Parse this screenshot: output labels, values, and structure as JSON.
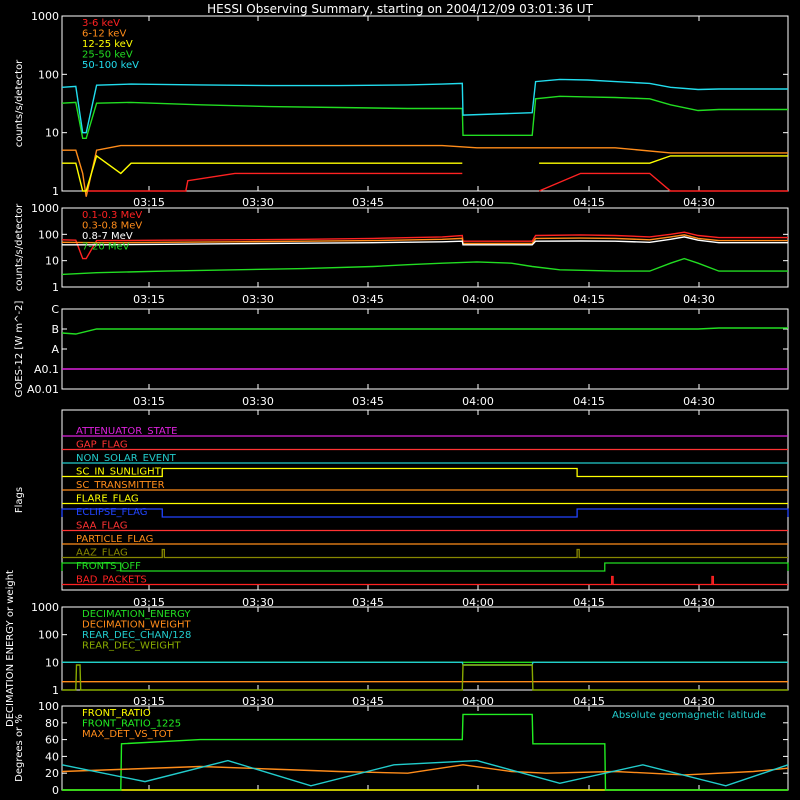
{
  "title": "HESSI Observing Summary, starting on 2004/12/09 03:01:36 UT",
  "time_ticks": [
    "03:15",
    "03:30",
    "03:45",
    "04:00",
    "04:15",
    "04:30"
  ],
  "chart_data": [
    {
      "type": "line",
      "ylabel": "counts/s/detector",
      "yscale": "log",
      "ylim": [
        1,
        1000
      ],
      "ytick_labels": [
        "1",
        "10",
        "100",
        "1000"
      ],
      "x_unit": "minutes after 03:01:36 UT",
      "xlim": [
        0,
        105
      ],
      "legend": "top-left",
      "series": [
        {
          "name": "3-6 keV",
          "color": "#ff2222",
          "x": [
            3.5,
            8.5,
            17.9,
            18.2,
            25,
            40,
            55,
            57.9,
            58,
            68,
            69,
            75,
            80,
            85,
            88,
            105
          ],
          "y": [
            1,
            1,
            1,
            1.5,
            2,
            2,
            2,
            2,
            null,
            null,
            1,
            2,
            2,
            2,
            1,
            1
          ]
        },
        {
          "name": "6-12 keV",
          "color": "#ff8c1a",
          "x": [
            0,
            2,
            3,
            3.5,
            5,
            8.5,
            10,
            20,
            30,
            40,
            50,
            55,
            60,
            70,
            80,
            88,
            95,
            100,
            105
          ],
          "y": [
            5,
            5,
            2,
            0.8,
            5,
            6,
            6,
            6,
            6,
            6,
            6,
            6,
            5.5,
            5.5,
            5.5,
            4.5,
            4.5,
            4.5,
            4.5
          ]
        },
        {
          "name": "12-25 keV",
          "color": "#ffff00",
          "x": [
            0,
            2,
            3,
            3.5,
            5,
            8.5,
            10,
            20,
            30,
            40,
            50,
            57.9,
            58,
            68,
            69,
            75,
            80,
            85,
            88,
            95,
            105
          ],
          "y": [
            3,
            3,
            1,
            1,
            4,
            2,
            3,
            3,
            3,
            3,
            3,
            3,
            null,
            null,
            3,
            3,
            3,
            3,
            4,
            4,
            4
          ]
        },
        {
          "name": "25-50 keV",
          "color": "#22dd22",
          "x": [
            0,
            2,
            3,
            3.5,
            5,
            10,
            20,
            30,
            40,
            50,
            55,
            57.9,
            58,
            68,
            68.5,
            72,
            76,
            80,
            85,
            88,
            92,
            95,
            100,
            105
          ],
          "y": [
            32,
            33,
            8,
            8,
            32,
            33,
            30,
            28,
            27,
            26,
            26,
            26,
            9,
            9,
            38,
            42,
            41,
            40,
            38,
            30,
            24,
            25,
            25,
            25
          ]
        },
        {
          "name": "50-100 keV",
          "color": "#22ddee",
          "x": [
            0,
            2,
            3,
            3.5,
            5,
            10,
            20,
            30,
            40,
            50,
            55,
            57.9,
            58,
            68,
            68.5,
            72,
            76,
            80,
            85,
            88,
            92,
            95,
            100,
            105
          ],
          "y": [
            60,
            62,
            10,
            10,
            65,
            68,
            66,
            64,
            64,
            66,
            68,
            70,
            20,
            22,
            75,
            82,
            80,
            75,
            70,
            60,
            55,
            56,
            56,
            56
          ]
        }
      ]
    },
    {
      "type": "line",
      "ylabel": "counts/s/detector",
      "yscale": "log",
      "ylim": [
        1,
        1000
      ],
      "ytick_labels": [
        "1",
        "10",
        "100",
        "1000"
      ],
      "x_unit": "minutes after 03:01:36 UT",
      "xlim": [
        0,
        105
      ],
      "legend": "top-left",
      "series": [
        {
          "name": "0.1-0.3 MeV",
          "color": "#ff2222",
          "x": [
            0,
            2,
            3,
            3.5,
            5,
            15,
            25,
            35,
            45,
            55,
            57.9,
            58,
            68,
            68.5,
            75,
            80,
            85,
            88,
            90,
            92,
            95,
            100,
            105
          ],
          "y": [
            62,
            60,
            12,
            12,
            58,
            60,
            62,
            65,
            70,
            80,
            90,
            55,
            55,
            90,
            95,
            90,
            80,
            100,
            120,
            90,
            75,
            75,
            75
          ]
        },
        {
          "name": "0.3-0.8 MeV",
          "color": "#ff8c1a",
          "x": [
            0,
            5,
            15,
            25,
            35,
            45,
            55,
            57.9,
            58,
            68,
            68.5,
            75,
            80,
            85,
            88,
            90,
            92,
            95,
            105
          ],
          "y": [
            50,
            48,
            50,
            52,
            55,
            58,
            65,
            70,
            45,
            45,
            70,
            72,
            70,
            62,
            80,
            95,
            70,
            58,
            58
          ]
        },
        {
          "name": "0.8-7 MeV",
          "color": "#ffffff",
          "x": [
            0,
            5,
            15,
            25,
            35,
            45,
            55,
            57.9,
            58,
            68,
            68.5,
            75,
            80,
            85,
            88,
            90,
            92,
            95,
            105
          ],
          "y": [
            40,
            40,
            42,
            44,
            46,
            48,
            52,
            55,
            40,
            40,
            55,
            56,
            55,
            50,
            65,
            80,
            60,
            48,
            48
          ]
        },
        {
          "name": "7-20 MeV",
          "color": "#22dd22",
          "x": [
            0,
            5,
            15,
            25,
            35,
            45,
            50,
            55,
            60,
            65,
            68,
            72,
            80,
            85,
            88,
            90,
            92,
            95,
            105
          ],
          "y": [
            3,
            3.5,
            4,
            4.5,
            5,
            6,
            7,
            8,
            9,
            8,
            6,
            4.5,
            4,
            4,
            8,
            12,
            8,
            4,
            4
          ]
        }
      ]
    },
    {
      "type": "line",
      "ylabel": "GOES-12 [W m^-2]",
      "ytick_labels": [
        "C",
        "B",
        "A",
        "A0.1",
        "A0.01"
      ],
      "x_unit": "minutes after 03:01:36 UT",
      "xlim": [
        0,
        105
      ],
      "series": [
        {
          "color": "#22dd22",
          "x": [
            0,
            2,
            5,
            20,
            40,
            60,
            80,
            92,
            95,
            100,
            105
          ],
          "y": [
            1.2,
            1.25,
            1.0,
            1.0,
            1.0,
            1.0,
            1.0,
            1.0,
            0.95,
            0.95,
            0.95
          ]
        },
        {
          "color": "#dd22dd",
          "x": [
            0,
            105
          ],
          "y": [
            3.0,
            3.0
          ]
        }
      ]
    },
    {
      "type": "timeline",
      "ylabel": "Flags",
      "x_unit": "minutes after 03:01:36 UT",
      "xlim": [
        0,
        105
      ],
      "flags": [
        {
          "name": "ATTENUATOR_STATE",
          "color": "#dd22dd",
          "intervals": []
        },
        {
          "name": "GAP_FLAG",
          "color": "#ff3333",
          "intervals": []
        },
        {
          "name": "NON_SOLAR_EVENT",
          "color": "#22cccc",
          "intervals": []
        },
        {
          "name": "SC_IN_SUNLIGHT",
          "color": "#ffff00",
          "intervals": [
            [
              14.5,
              74.5
            ]
          ]
        },
        {
          "name": "SC_TRANSMITTER",
          "color": "#ff8c1a",
          "intervals": []
        },
        {
          "name": "FLARE_FLAG",
          "color": "#ffff00",
          "intervals": []
        },
        {
          "name": "ECLIPSE_FLAG",
          "color": "#2244ff",
          "intervals": [
            [
              0,
              14.5
            ],
            [
              74.5,
              105
            ]
          ]
        },
        {
          "name": "SAA_FLAG",
          "color": "#ff3333",
          "intervals": []
        },
        {
          "name": "PARTICLE_FLAG",
          "color": "#ff8c1a",
          "intervals": []
        },
        {
          "name": "AAZ_FLAG",
          "color": "#888800",
          "intervals": [
            [
              14.5,
              14.8
            ],
            [
              74.5,
              74.8
            ]
          ]
        },
        {
          "name": "FRONTS_OFF",
          "color": "#22dd22",
          "intervals": [
            [
              0,
              8.5
            ],
            [
              78.5,
              105
            ]
          ]
        },
        {
          "name": "BAD_PACKETS",
          "color": "#ff2222",
          "intervals": [
            [
              79.5,
              79.7
            ],
            [
              94,
              94.2
            ]
          ]
        }
      ]
    },
    {
      "type": "line",
      "ylabel": "DECIMATION ENERGY or weight",
      "yscale": "log",
      "ylim": [
        1,
        1000
      ],
      "ytick_labels": [
        "1",
        "10",
        "100",
        "1000"
      ],
      "x_unit": "minutes after 03:01:36 UT",
      "xlim": [
        0,
        105
      ],
      "legend": "top-left",
      "series": [
        {
          "name": "DECIMATION_ENERGY",
          "color": "#22dd22",
          "x": [
            0,
            105
          ],
          "y": [
            10,
            10
          ]
        },
        {
          "name": "DECIMATION_WEIGHT",
          "color": "#ff8c1a",
          "x": [
            0,
            105
          ],
          "y": [
            2,
            2
          ]
        },
        {
          "name": "REAR_DEC_CHAN/128",
          "color": "#22cccc",
          "x": [
            0,
            57.9,
            58,
            68,
            68.1,
            105
          ],
          "y": [
            10,
            10,
            8,
            8,
            10,
            10
          ]
        },
        {
          "name": "REAR_DEC_WEIGHT",
          "color": "#88aa00",
          "x": [
            0,
            2,
            2.1,
            2.6,
            2.7,
            57.9,
            58,
            68,
            68.1,
            105
          ],
          "y": [
            1,
            1,
            8,
            8,
            1,
            1,
            8,
            8,
            1,
            1
          ]
        }
      ]
    },
    {
      "type": "line",
      "ylabel": "Degrees or %",
      "ylim": [
        0,
        100
      ],
      "ytick_labels": [
        "0",
        "20",
        "40",
        "60",
        "80",
        "100"
      ],
      "annotation": "Absolute geomagnetic latitude",
      "x_unit": "minutes after 03:01:36 UT",
      "xlim": [
        0,
        105
      ],
      "legend": "top-left",
      "series": [
        {
          "name": "FRONT_RATIO",
          "color": "#ffff00",
          "x": [
            0,
            105
          ],
          "y": [
            0,
            0
          ]
        },
        {
          "name": "FRONT_RATIO_1225",
          "color": "#22ee22",
          "x": [
            0,
            8.5,
            8.6,
            20,
            35,
            57.9,
            58,
            68,
            68.1,
            78.5,
            78.6,
            105
          ],
          "y": [
            0,
            0,
            55,
            60,
            60,
            60,
            90,
            90,
            55,
            55,
            0,
            0
          ]
        },
        {
          "name": "MAX_DET_VS_TOT",
          "color": "#ff8c1a",
          "x": [
            0,
            10,
            20,
            30,
            40,
            50,
            58,
            65,
            70,
            80,
            90,
            100,
            105
          ],
          "y": [
            22,
            25,
            28,
            25,
            22,
            20,
            30,
            22,
            20,
            22,
            18,
            22,
            26
          ]
        },
        {
          "name": "Absolute geomagnetic latitude",
          "color": "#22cccc",
          "x": [
            0,
            12,
            24,
            36,
            48,
            60,
            72,
            84,
            96,
            105
          ],
          "y": [
            30,
            10,
            35,
            5,
            30,
            35,
            8,
            30,
            5,
            30
          ]
        }
      ]
    }
  ]
}
